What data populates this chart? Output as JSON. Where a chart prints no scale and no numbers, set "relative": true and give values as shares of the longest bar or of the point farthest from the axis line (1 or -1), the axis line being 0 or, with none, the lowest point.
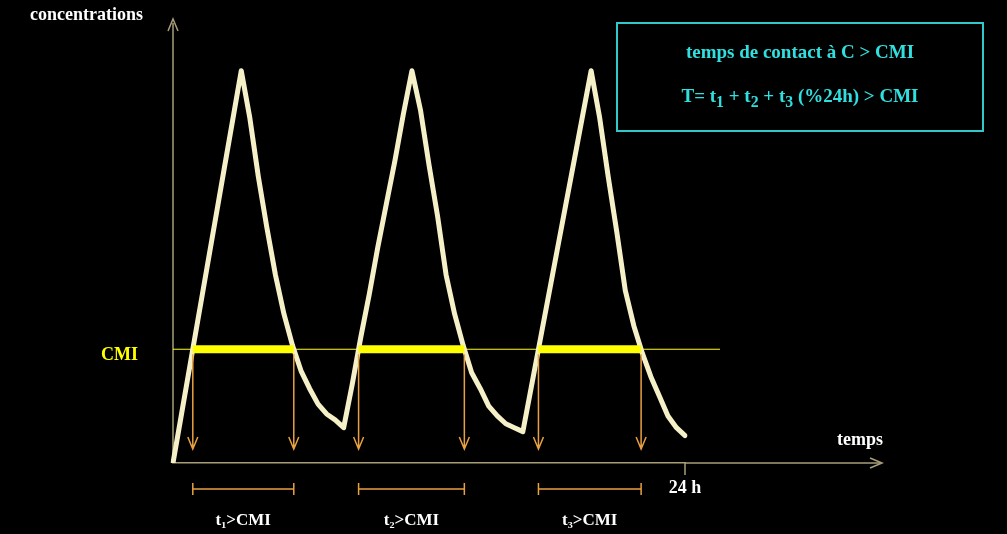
{
  "chart_data": {
    "type": "line",
    "relative": true,
    "ylabel": "concentrations",
    "categories": [
      null,
      null,
      null,
      null,
      null,
      null,
      null,
      null,
      null,
      null,
      null,
      null,
      null,
      null,
      null,
      null,
      null,
      null,
      null,
      null,
      null,
      null,
      null,
      null,
      null,
      null,
      null,
      null,
      null,
      null,
      null,
      null,
      null,
      null,
      null,
      null,
      null,
      null,
      null,
      null,
      null,
      null,
      null,
      null,
      null,
      null,
      null,
      null,
      null,
      null,
      null,
      null,
      null,
      null,
      null,
      null,
      null,
      null,
      null,
      null,
      null
    ],
    "series": [
      {
        "color": "#f5f0c8",
        "values": [
          0,
          0.125,
          0.25,
          0.375,
          0.5,
          0.625,
          0.75,
          0.875,
          1,
          0.88,
          0.73,
          0.6,
          0.48,
          0.38,
          0.3,
          0.235,
          0.19,
          0.15,
          0.125,
          0.11,
          0.09,
          0.2,
          0.32,
          0.43,
          0.55,
          0.66,
          0.77,
          0.89,
          1,
          0.9,
          0.76,
          0.63,
          0.48,
          0.38,
          0.3,
          0.23,
          0.19,
          0.145,
          0.12,
          0.1,
          0.09,
          0.08,
          0.195,
          0.31,
          0.425,
          0.54,
          0.655,
          0.77,
          0.885,
          1,
          0.88,
          0.73,
          0.59,
          0.44,
          0.35,
          0.28,
          0.22,
          0.17,
          0.12,
          0.09,
          0.07
        ]
      }
    ],
    "ref_lines": [
      {
        "axis": "y",
        "value": 0.29,
        "label": "CMI",
        "color": "#ffff00"
      }
    ],
    "annotations": [
      "24 h",
      "t₁>CMI",
      "t₂>CMI",
      "t₃>CMI",
      "temps de contact à C > CMI",
      "T= t$_{1}$ + t$_{2}$ + t$_{3}$ (%24h) > CMI",
      "temps"
    ],
    "legend": false,
    "marker": "none",
    "line_style": "solid"
  }
}
